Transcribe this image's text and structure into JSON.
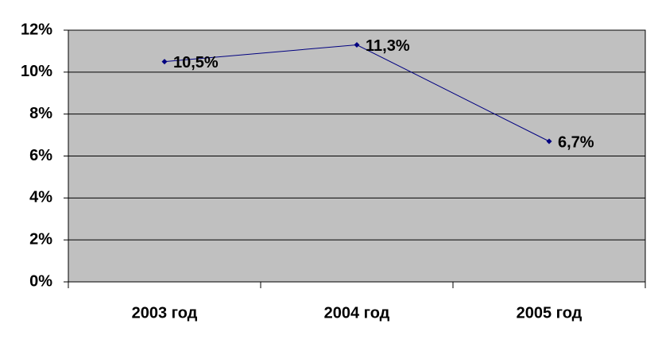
{
  "chart_data": {
    "type": "line",
    "categories": [
      "2003 год",
      "2004 год",
      "2005 год"
    ],
    "series": [
      {
        "name": null,
        "color": "#000080",
        "values": [
          10.5,
          11.3,
          6.7
        ],
        "value_labels": [
          "10,5%",
          "11,3%",
          "6,7%"
        ]
      }
    ],
    "ylim": [
      0,
      12
    ],
    "yticks": [
      {
        "value": 0,
        "label": "0%"
      },
      {
        "value": 2,
        "label": "2%"
      },
      {
        "value": 4,
        "label": "4%"
      },
      {
        "value": 6,
        "label": "6%"
      },
      {
        "value": 8,
        "label": "8%"
      },
      {
        "value": 10,
        "label": "10%"
      },
      {
        "value": 12,
        "label": "12%"
      }
    ],
    "grid": true,
    "plot_background": "#c0c0c0"
  }
}
